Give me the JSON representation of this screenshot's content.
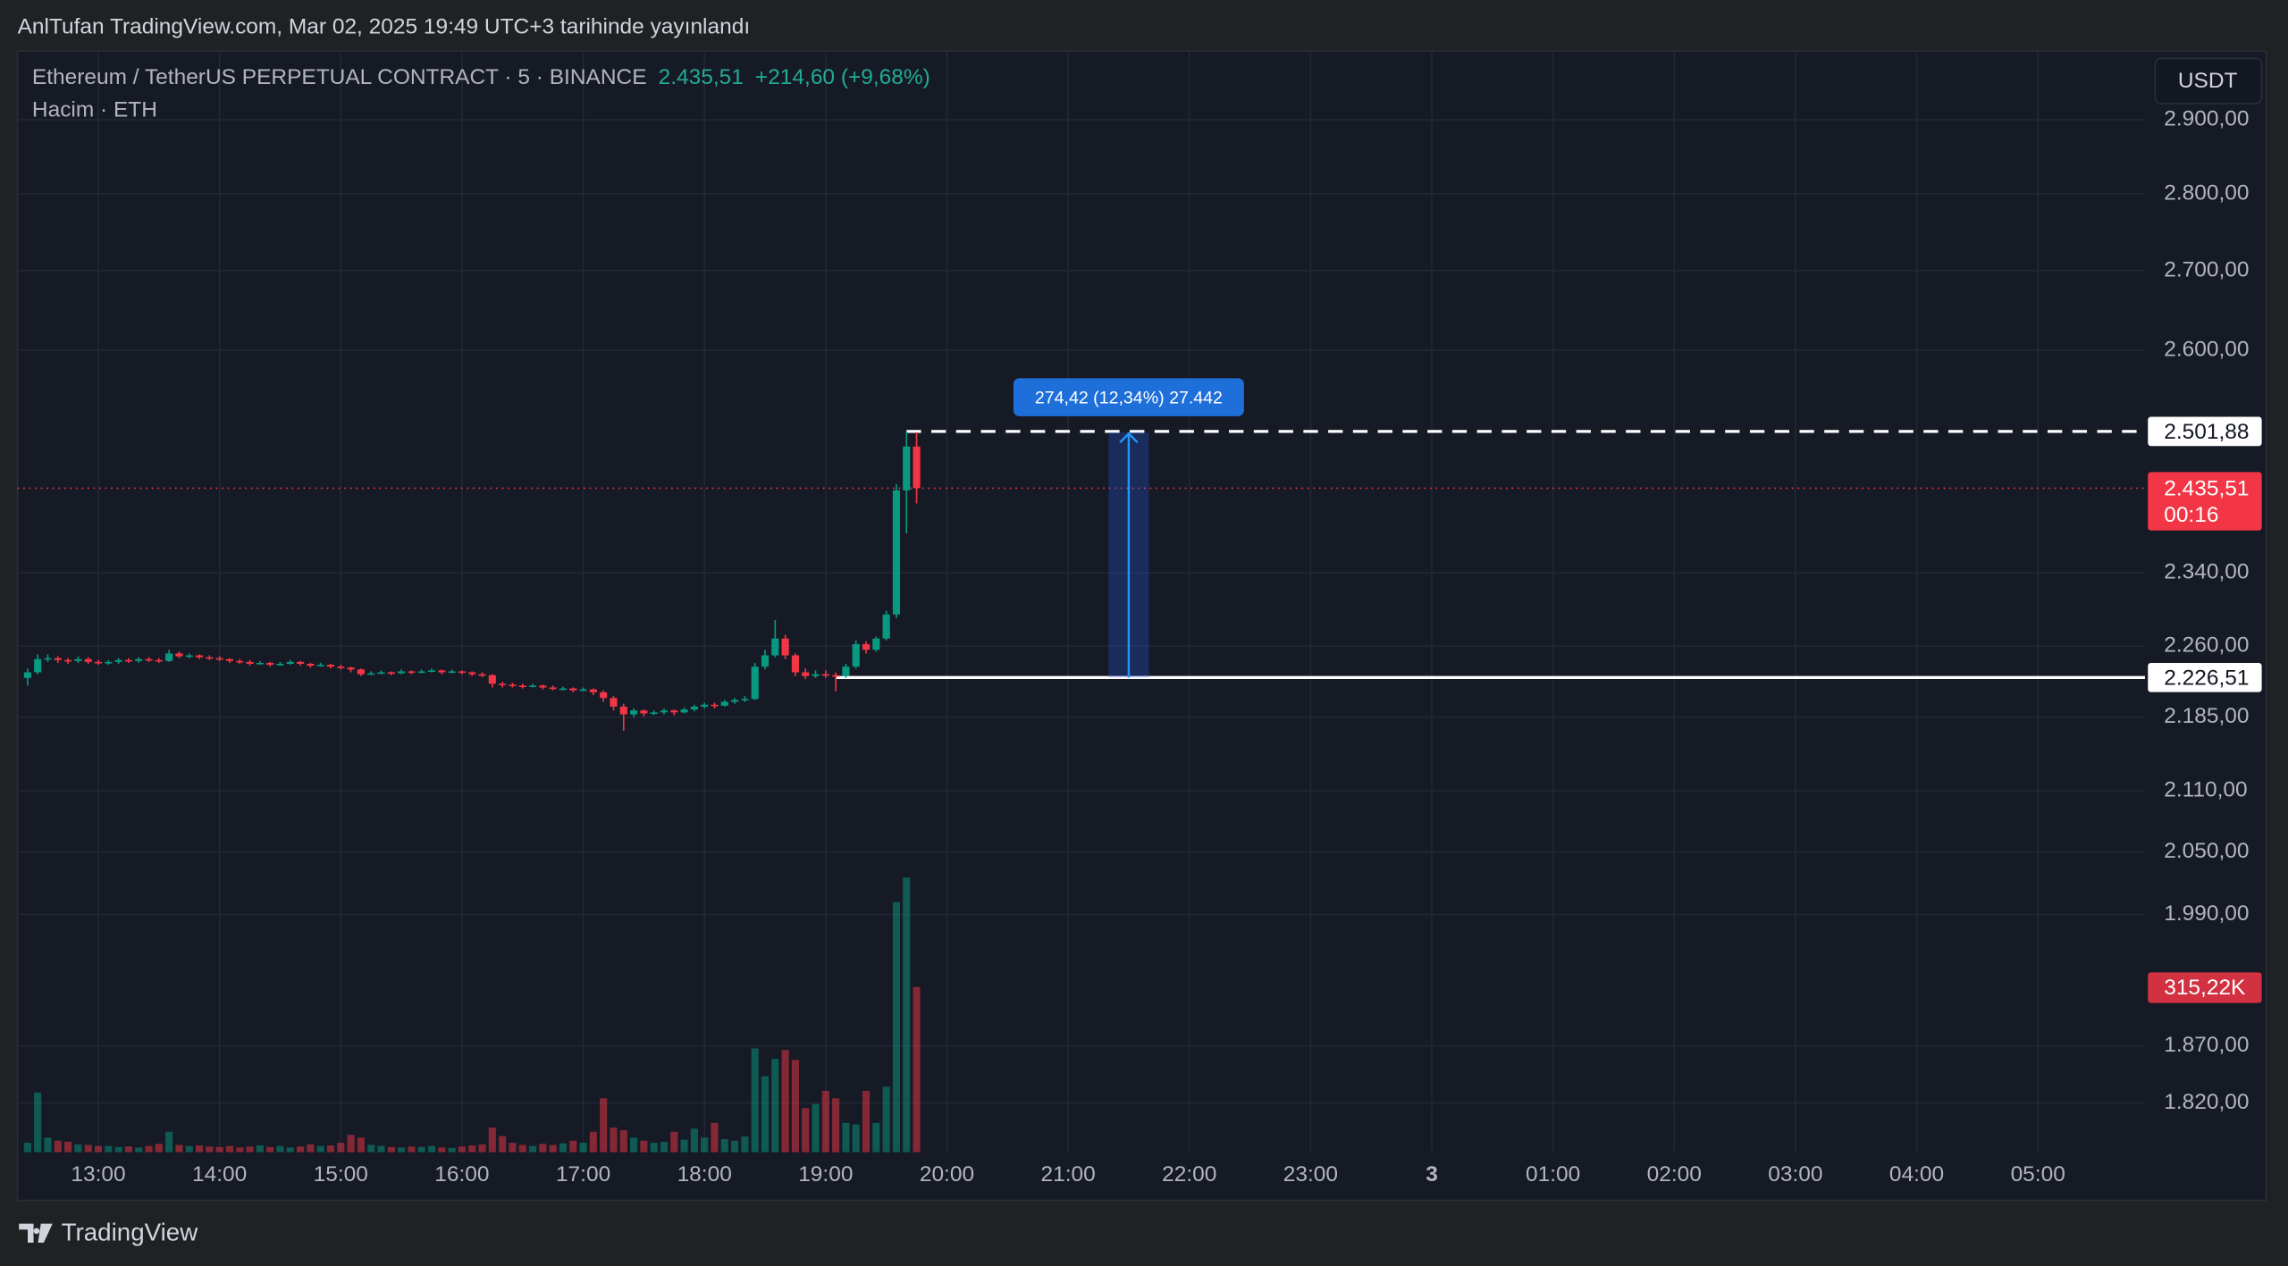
{
  "header": "AnlTufan TradingView.com, Mar 02, 2025 19:49 UTC+3 tarihinde yayınlandı",
  "footer": "TradingView",
  "currency_button": "USDT",
  "chart_data": {
    "type": "candlestick",
    "title": "Ethereum / TetherUS PERPETUAL CONTRACT · 5 · BINANCE",
    "legend_price": "2.435,51",
    "legend_change": "+214,60 (+9,68%)",
    "volume_title": "Hacim · ETH",
    "up_color": "#089981",
    "down_color": "#f23645",
    "log_scale": true,
    "grid": true,
    "x": [
      "12:25",
      "12:30",
      "12:35",
      "12:40",
      "12:45",
      "12:50",
      "12:55",
      "13:00",
      "13:05",
      "13:10",
      "13:15",
      "13:20",
      "13:25",
      "13:30",
      "13:35",
      "13:40",
      "13:45",
      "13:50",
      "13:55",
      "14:00",
      "14:05",
      "14:10",
      "14:15",
      "14:20",
      "14:25",
      "14:30",
      "14:35",
      "14:40",
      "14:45",
      "14:50",
      "14:55",
      "15:00",
      "15:05",
      "15:10",
      "15:15",
      "15:20",
      "15:25",
      "15:30",
      "15:35",
      "15:40",
      "15:45",
      "15:50",
      "15:55",
      "16:00",
      "16:05",
      "16:10",
      "16:15",
      "16:20",
      "16:25",
      "16:30",
      "16:35",
      "16:40",
      "16:45",
      "16:50",
      "16:55",
      "17:00",
      "17:05",
      "17:10",
      "17:15",
      "17:20",
      "17:25",
      "17:30",
      "17:35",
      "17:40",
      "17:45",
      "17:50",
      "17:55",
      "18:00",
      "18:05",
      "18:10",
      "18:15",
      "18:20",
      "18:25",
      "18:30",
      "18:35",
      "18:40",
      "18:45",
      "18:50",
      "18:55",
      "19:00",
      "19:05",
      "19:10",
      "19:15",
      "19:20",
      "19:25",
      "19:30",
      "19:35",
      "19:40",
      "19:45"
    ],
    "open": [
      2226,
      2232,
      2246,
      2247,
      2245,
      2244,
      2246,
      2243,
      2242,
      2243,
      2245,
      2244,
      2246,
      2245,
      2244,
      2252,
      2249,
      2250,
      2248,
      2247,
      2246,
      2244,
      2243,
      2241,
      2242,
      2240,
      2241,
      2243,
      2241,
      2239,
      2240,
      2238,
      2237,
      2235,
      2230,
      2231,
      2232,
      2231,
      2233,
      2232,
      2233,
      2234,
      2232,
      2233,
      2232,
      2230,
      2229,
      2220,
      2219,
      2218,
      2217,
      2218,
      2216,
      2215,
      2215,
      2213,
      2214,
      2211,
      2205,
      2196,
      2188,
      2192,
      2189,
      2190,
      2192,
      2190,
      2193,
      2196,
      2198,
      2197,
      2201,
      2203,
      2204,
      2238,
      2250,
      2268,
      2250,
      2232,
      2228,
      2230,
      2229,
      2228,
      2238,
      2262,
      2256,
      2268,
      2294,
      2433,
      2484
    ],
    "high": [
      2236,
      2251,
      2251,
      2249,
      2247,
      2249,
      2248,
      2245,
      2245,
      2247,
      2247,
      2248,
      2248,
      2247,
      2256,
      2254,
      2252,
      2251,
      2250,
      2249,
      2247,
      2246,
      2245,
      2244,
      2243,
      2243,
      2245,
      2244,
      2242,
      2242,
      2241,
      2240,
      2238,
      2236,
      2233,
      2234,
      2233,
      2235,
      2234,
      2235,
      2236,
      2235,
      2235,
      2234,
      2233,
      2232,
      2230,
      2222,
      2221,
      2220,
      2220,
      2219,
      2218,
      2217,
      2216,
      2216,
      2215,
      2213,
      2207,
      2199,
      2194,
      2193,
      2192,
      2194,
      2193,
      2195,
      2198,
      2200,
      2200,
      2203,
      2205,
      2207,
      2242,
      2256,
      2288,
      2272,
      2252,
      2236,
      2234,
      2234,
      2232,
      2241,
      2266,
      2265,
      2270,
      2298,
      2440,
      2501.88,
      2500.93
    ],
    "low": [
      2218,
      2230,
      2243,
      2242,
      2241,
      2242,
      2241,
      2240,
      2240,
      2241,
      2242,
      2242,
      2243,
      2242,
      2243,
      2247,
      2247,
      2246,
      2245,
      2244,
      2242,
      2241,
      2239,
      2240,
      2238,
      2239,
      2240,
      2239,
      2237,
      2238,
      2236,
      2235,
      2232,
      2228,
      2229,
      2230,
      2229,
      2230,
      2230,
      2231,
      2232,
      2230,
      2231,
      2230,
      2228,
      2227,
      2216,
      2216,
      2216,
      2215,
      2216,
      2214,
      2213,
      2213,
      2211,
      2212,
      2208,
      2201,
      2192,
      2171,
      2185,
      2186,
      2187,
      2188,
      2187,
      2189,
      2191,
      2194,
      2194,
      2196,
      2199,
      2201,
      2203,
      2235,
      2248,
      2246,
      2228,
      2225,
      2226,
      2226,
      2212,
      2226,
      2236,
      2252,
      2254,
      2266,
      2290,
      2384,
      2418
    ],
    "close": [
      2232,
      2246,
      2247,
      2245,
      2244,
      2246,
      2243,
      2242,
      2243,
      2245,
      2244,
      2246,
      2245,
      2244,
      2252,
      2249,
      2250,
      2248,
      2247,
      2246,
      2244,
      2243,
      2241,
      2242,
      2240,
      2241,
      2243,
      2241,
      2239,
      2240,
      2238,
      2237,
      2235,
      2230,
      2231,
      2232,
      2231,
      2233,
      2232,
      2233,
      2234,
      2232,
      2233,
      2232,
      2230,
      2229,
      2220,
      2219,
      2218,
      2217,
      2218,
      2216,
      2215,
      2215,
      2213,
      2214,
      2211,
      2205,
      2196,
      2188,
      2192,
      2189,
      2190,
      2192,
      2190,
      2193,
      2196,
      2198,
      2197,
      2201,
      2203,
      2204,
      2238,
      2250,
      2268,
      2250,
      2232,
      2228,
      2230,
      2229,
      2228,
      2238,
      2262,
      2256,
      2268,
      2294,
      2433,
      2484,
      2435.51
    ],
    "volume": {
      "name": "Hacim",
      "axis": "y2",
      "values": [
        18000,
        114000,
        28000,
        22000,
        20000,
        15000,
        14000,
        12000,
        12000,
        10000,
        11000,
        9000,
        12000,
        16000,
        39000,
        14000,
        12000,
        13000,
        11000,
        10000,
        12000,
        9000,
        11000,
        13000,
        10000,
        12000,
        9000,
        11000,
        15000,
        12000,
        13000,
        18000,
        33000,
        28000,
        14000,
        12000,
        10000,
        9000,
        11000,
        10000,
        12000,
        9000,
        8000,
        11000,
        13000,
        15000,
        47000,
        31000,
        18000,
        14000,
        12000,
        16000,
        14000,
        17000,
        22000,
        18000,
        39000,
        103000,
        47000,
        42000,
        28000,
        22000,
        18000,
        20000,
        39000,
        24000,
        45000,
        28000,
        56000,
        25000,
        22000,
        30000,
        198000,
        145000,
        178000,
        195000,
        176000,
        84000,
        92000,
        117000,
        103000,
        56000,
        53000,
        117000,
        56000,
        125000,
        477000,
        524000,
        315220
      ],
      "last_label": {
        "value": 315220,
        "label": "315,22K"
      }
    },
    "xlim": [
      740,
      1793
    ],
    "xticks": [
      {
        "value": 780,
        "label": "13:00"
      },
      {
        "value": 840,
        "label": "14:00"
      },
      {
        "value": 900,
        "label": "15:00"
      },
      {
        "value": 960,
        "label": "16:00"
      },
      {
        "value": 1020,
        "label": "17:00"
      },
      {
        "value": 1080,
        "label": "18:00"
      },
      {
        "value": 1140,
        "label": "19:00"
      },
      {
        "value": 1200,
        "label": "20:00"
      },
      {
        "value": 1260,
        "label": "21:00"
      },
      {
        "value": 1320,
        "label": "22:00"
      },
      {
        "value": 1380,
        "label": "23:00"
      },
      {
        "value": 1440,
        "label": "3"
      },
      {
        "value": 1500,
        "label": "01:00"
      },
      {
        "value": 1560,
        "label": "02:00"
      },
      {
        "value": 1620,
        "label": "03:00"
      },
      {
        "value": 1680,
        "label": "04:00"
      },
      {
        "value": 1740,
        "label": "05:00"
      }
    ],
    "ylim": [
      1778,
      2996
    ],
    "yticks": [
      {
        "value": 2900,
        "label": "2.900,00"
      },
      {
        "value": 2800,
        "label": "2.800,00"
      },
      {
        "value": 2700,
        "label": "2.700,00"
      },
      {
        "value": 2600,
        "label": "2.600,00"
      },
      {
        "value": 2340,
        "label": "2.340,00"
      },
      {
        "value": 2260,
        "label": "2.260,00"
      },
      {
        "value": 2185,
        "label": "2.185,00"
      },
      {
        "value": 2110,
        "label": "2.110,00"
      },
      {
        "value": 2050,
        "label": "2.050,00"
      },
      {
        "value": 1990,
        "label": "1.990,00"
      },
      {
        "value": 1870,
        "label": "1.870,00"
      },
      {
        "value": 1820,
        "label": "1.820,00"
      }
    ],
    "y2lim": [
      0,
      2100000
    ],
    "price_lines": [
      {
        "value": 2501.88,
        "label": "2.501,88",
        "style": "dashed",
        "from": "19:40"
      },
      {
        "value": 2226.51,
        "label": "2.226,51",
        "style": "solid",
        "from": "19:05"
      }
    ],
    "last_price": {
      "value": 2435.51,
      "label": "2.435,51",
      "countdown": "00:16"
    },
    "measure": {
      "from": 2226.51,
      "to": 2500.93,
      "start": "21:20",
      "end": "21:40",
      "label": "274,42 (12,34%) 27.442"
    }
  }
}
